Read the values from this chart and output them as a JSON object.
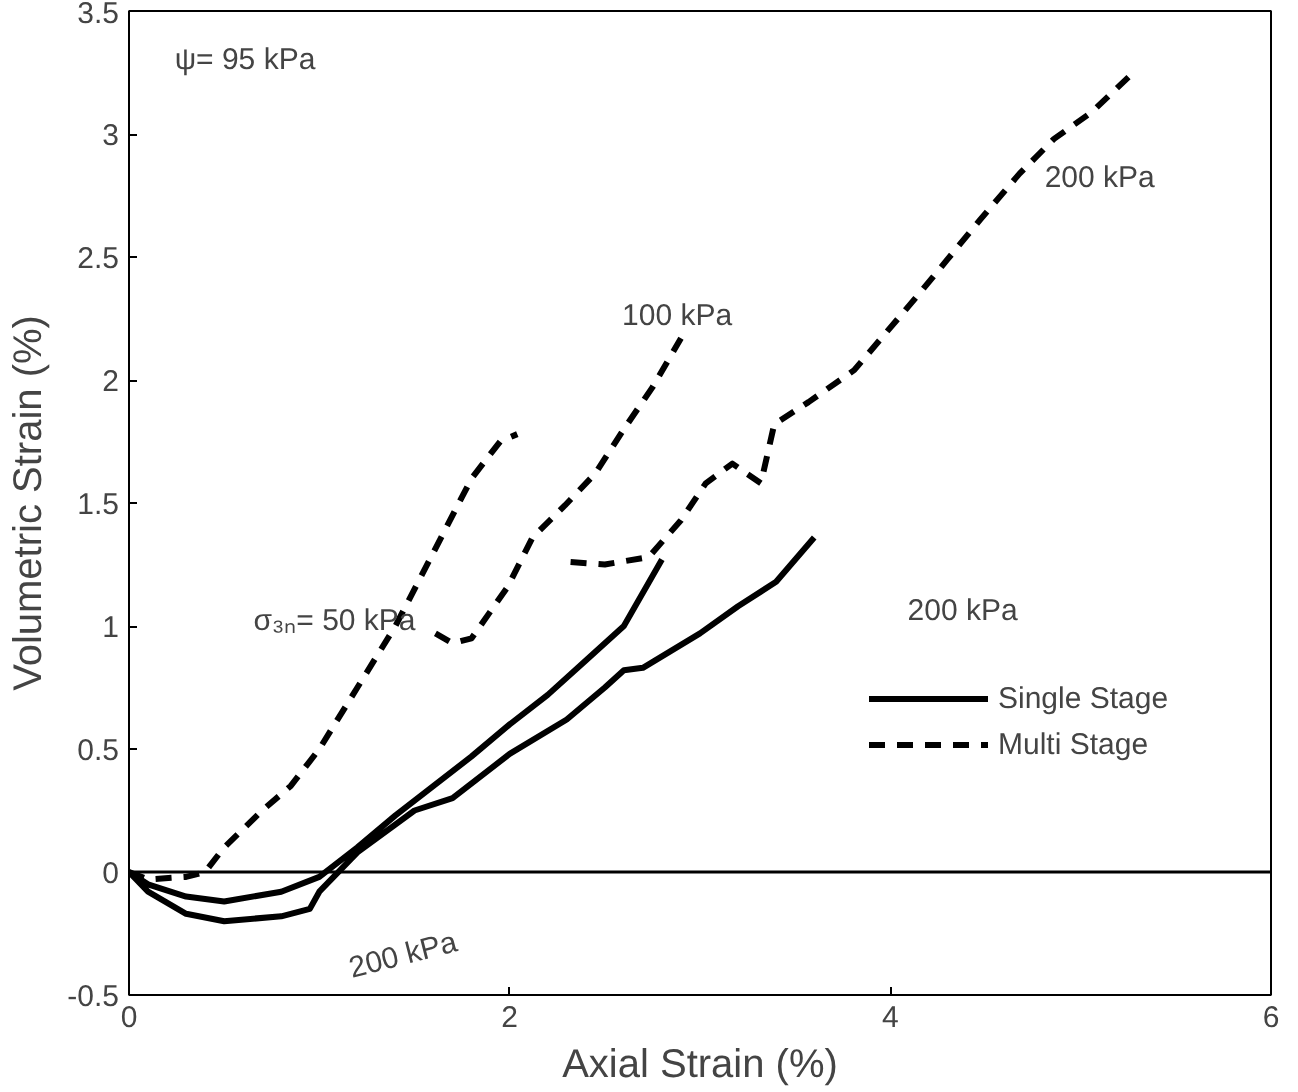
{
  "chart_data": {
    "type": "line",
    "xlabel": "Axial Strain (%)",
    "ylabel": "Volumetric Strain (%)",
    "xlim": [
      0,
      6
    ],
    "xticks": [
      0,
      2,
      4,
      6
    ],
    "ylim": [
      -0.5,
      3.5
    ],
    "yticks": [
      -0.5,
      0,
      0.5,
      1,
      1.5,
      2,
      2.5,
      3,
      3.5
    ],
    "grid": false,
    "legend": "right",
    "marker": "none",
    "ref_lines": [
      {
        "axis": "y",
        "value": 0,
        "label": null,
        "color": "#000000",
        "line_style": "solid"
      }
    ],
    "series": [
      {
        "name": "Single Stage",
        "color": "#000000",
        "line_style": "solid",
        "x": [
          0,
          0.1,
          0.3,
          0.5,
          0.8,
          1.0,
          1.2,
          1.4,
          1.6,
          1.8,
          2.0,
          2.2,
          2.4,
          2.6,
          2.8,
          null,
          0,
          0.1,
          0.3,
          0.5,
          0.8,
          0.95,
          1.0,
          1.2,
          1.5,
          1.7,
          2.0,
          2.3,
          2.5,
          2.6,
          2.7,
          3.0,
          3.2,
          3.4,
          3.6
        ],
        "values": [
          0,
          -0.05,
          -0.1,
          -0.12,
          -0.08,
          -0.02,
          0.1,
          0.23,
          0.35,
          0.47,
          0.6,
          0.72,
          0.86,
          1.0,
          1.27,
          null,
          0,
          -0.08,
          -0.17,
          -0.2,
          -0.18,
          -0.15,
          -0.08,
          0.08,
          0.25,
          0.3,
          0.48,
          0.62,
          0.75,
          0.82,
          0.83,
          0.97,
          1.08,
          1.18,
          1.36
        ]
      },
      {
        "name": "Multi Stage",
        "color": "#000000",
        "line_style": "dashed",
        "x": [
          0,
          0.1,
          0.3,
          0.4,
          0.5,
          0.7,
          0.85,
          1.0,
          1.2,
          1.4,
          1.6,
          1.8,
          1.95,
          2.04,
          null,
          1.61,
          1.7,
          1.8,
          1.99,
          2.12,
          2.29,
          2.45,
          2.6,
          2.75,
          2.9,
          null,
          2.32,
          2.5,
          2.73,
          2.9,
          3.03,
          3.17,
          3.32,
          3.39,
          3.57,
          3.81,
          4.14,
          4.3,
          4.47,
          4.68,
          4.86,
          5.06,
          5.29
        ],
        "values": [
          0,
          -0.03,
          -0.02,
          0,
          0.1,
          0.25,
          0.35,
          0.5,
          0.75,
          1.0,
          1.3,
          1.6,
          1.75,
          1.78,
          null,
          0.97,
          0.93,
          0.95,
          1.16,
          1.36,
          1.49,
          1.62,
          1.8,
          1.97,
          2.17,
          null,
          1.26,
          1.25,
          1.28,
          1.43,
          1.58,
          1.66,
          1.58,
          1.82,
          1.91,
          2.04,
          2.34,
          2.49,
          2.65,
          2.84,
          2.98,
          3.09,
          3.26
        ]
      }
    ],
    "annotations": [
      "ψ= 95 kPa",
      "σ₃ₙ= 50 kPa",
      "100 kPa",
      "200 kPa",
      "200 kPa",
      "200 kPa"
    ]
  }
}
